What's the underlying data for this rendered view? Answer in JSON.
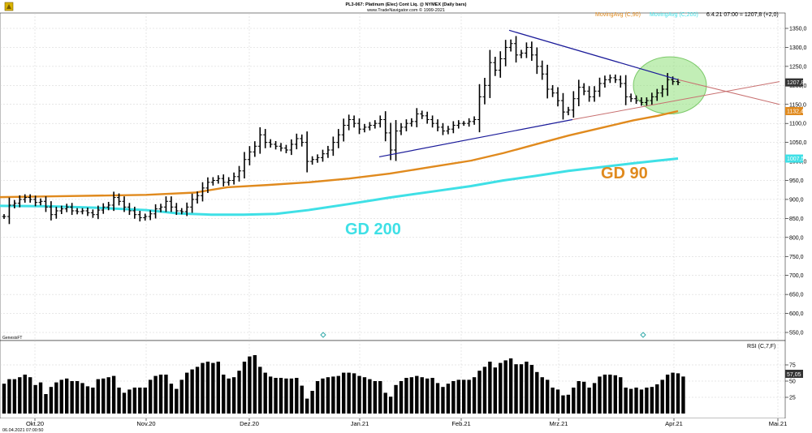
{
  "header": {
    "title": "PL3-067: Platinum (Elec) Cont Liq. @ NYMEX (Daily bars)",
    "copyright": "www.TradeNavigator.com © 1999-2021"
  },
  "legend": {
    "ma90_label": "MovingAvg (C,90)",
    "ma200_label": "MovingAvg (C,200)",
    "quote": "6.4.21 07:00 = 1207,8 (+2,0)"
  },
  "badges": {
    "last": "1207,8",
    "ma90": "1132,4",
    "ma200": "1007,5",
    "rsi": "57,05"
  },
  "annotations": {
    "gd90": "GD 90",
    "gd200": "GD 200"
  },
  "footer": {
    "timestamp": "06.04.2021 07:00:50",
    "source": "GenesisFT"
  },
  "rsi_panel": {
    "label": "RSI (C,7,F)",
    "ticks": [
      "75",
      "50",
      "25"
    ]
  },
  "colors": {
    "bars": "#000000",
    "ma90": "#e08a1e",
    "ma200": "#3fe0e6",
    "triangle": "#1a1a99",
    "trend": "#c87070",
    "ellipse": "#8fe07a",
    "last_badge": "#333333",
    "ma90_badge": "#e08a1e",
    "ma200_badge": "#3fe0e6"
  },
  "chart_data": {
    "type": "bar",
    "subtype": "ohlc",
    "x_labels": [
      "Okt.20",
      "Nov.20",
      "Dez.20",
      "Jan.21",
      "Feb.21",
      "Mrz.21",
      "Apr.21",
      "Mai.21"
    ],
    "y_ticks": [
      "1350,0",
      "1300,0",
      "1250,0",
      "1200,0",
      "1150,0",
      "1100,0",
      "1050,0",
      "1000,0",
      "950,0",
      "900,0",
      "850,0",
      "800,0",
      "750,0",
      "700,0",
      "650,0",
      "600,0",
      "550,0"
    ],
    "ylim": [
      525,
      1375
    ],
    "grid": true,
    "close": [
      855,
      885,
      890,
      900,
      905,
      900,
      892,
      895,
      880,
      860,
      870,
      875,
      880,
      870,
      868,
      870,
      865,
      860,
      872,
      880,
      885,
      905,
      895,
      880,
      870,
      860,
      852,
      855,
      862,
      875,
      880,
      895,
      880,
      870,
      868,
      880,
      900,
      910,
      930,
      945,
      950,
      955,
      945,
      950,
      960,
      975,
      1005,
      1025,
      1040,
      1070,
      1050,
      1045,
      1040,
      1035,
      1030,
      1045,
      1060,
      1050,
      1000,
      1005,
      1010,
      1020,
      1030,
      1050,
      1070,
      1095,
      1110,
      1100,
      1085,
      1090,
      1095,
      1100,
      1110,
      1075,
      1030,
      1080,
      1090,
      1100,
      1105,
      1125,
      1120,
      1110,
      1100,
      1090,
      1080,
      1085,
      1095,
      1100,
      1100,
      1105,
      1110,
      1170,
      1200,
      1260,
      1240,
      1270,
      1300,
      1310,
      1280,
      1285,
      1300,
      1280,
      1250,
      1230,
      1190,
      1180,
      1160,
      1130,
      1135,
      1165,
      1195,
      1185,
      1170,
      1185,
      1205,
      1215,
      1220,
      1215,
      1205,
      1170,
      1165,
      1160,
      1155,
      1160,
      1170,
      1180,
      1190,
      1215,
      1210,
      1207.8
    ],
    "rsi": [
      46,
      53,
      53,
      56,
      60,
      56,
      44,
      48,
      30,
      41,
      48,
      52,
      54,
      50,
      50,
      47,
      42,
      40,
      53,
      54,
      56,
      58,
      40,
      32,
      37,
      40,
      40,
      40,
      52,
      58,
      60,
      60,
      46,
      38,
      52,
      63,
      68,
      72,
      78,
      80,
      78,
      80,
      60,
      54,
      56,
      66,
      80,
      88,
      90,
      72,
      63,
      57,
      55,
      55,
      54,
      54,
      55,
      43,
      23,
      35,
      50,
      54,
      56,
      57,
      58,
      63,
      63,
      62,
      58,
      56,
      53,
      50,
      50,
      32,
      26,
      44,
      50,
      55,
      56,
      58,
      56,
      54,
      55,
      47,
      41,
      46,
      50,
      52,
      52,
      52,
      56,
      66,
      72,
      80,
      71,
      78,
      82,
      85,
      76,
      76,
      80,
      75,
      64,
      56,
      52,
      40,
      37,
      28,
      29,
      40,
      50,
      49,
      40,
      47,
      57,
      60,
      60,
      59,
      56,
      40,
      38,
      40,
      37,
      40,
      41,
      45,
      52,
      60,
      63,
      62,
      57.05
    ],
    "ma90": [
      [
        0,
        906
      ],
      [
        60,
        908
      ],
      [
        120,
        910
      ],
      [
        180,
        912
      ],
      [
        240,
        918
      ],
      [
        280,
        932
      ],
      [
        330,
        938
      ],
      [
        380,
        945
      ],
      [
        430,
        955
      ],
      [
        480,
        968
      ],
      [
        530,
        985
      ],
      [
        580,
        1002
      ],
      [
        620,
        1022
      ],
      [
        660,
        1045
      ],
      [
        700,
        1068
      ],
      [
        740,
        1088
      ],
      [
        780,
        1108
      ],
      [
        810,
        1120
      ],
      [
        835,
        1132.4
      ]
    ],
    "ma200": [
      [
        0,
        883
      ],
      [
        60,
        882
      ],
      [
        120,
        878
      ],
      [
        180,
        872
      ],
      [
        220,
        863
      ],
      [
        260,
        860
      ],
      [
        300,
        860
      ],
      [
        340,
        862
      ],
      [
        380,
        872
      ],
      [
        430,
        888
      ],
      [
        480,
        905
      ],
      [
        530,
        920
      ],
      [
        580,
        935
      ],
      [
        620,
        950
      ],
      [
        660,
        962
      ],
      [
        700,
        975
      ],
      [
        740,
        985
      ],
      [
        780,
        995
      ],
      [
        810,
        1002
      ],
      [
        835,
        1007.5
      ]
    ],
    "triangle": {
      "apex": [
        627,
        1345
      ],
      "resistance_end": [
        835,
        1215
      ],
      "support_start": [
        467,
        1012
      ],
      "support_end": [
        705,
        1110
      ]
    },
    "trend_support": [
      [
        705,
        1110
      ],
      [
        960,
        1210
      ]
    ],
    "trend_resistance": [
      [
        835,
        1215
      ],
      [
        960,
        1150
      ]
    ],
    "highlight": {
      "cx": 825,
      "cy": 1200,
      "rx": 45,
      "ry": 75
    }
  }
}
